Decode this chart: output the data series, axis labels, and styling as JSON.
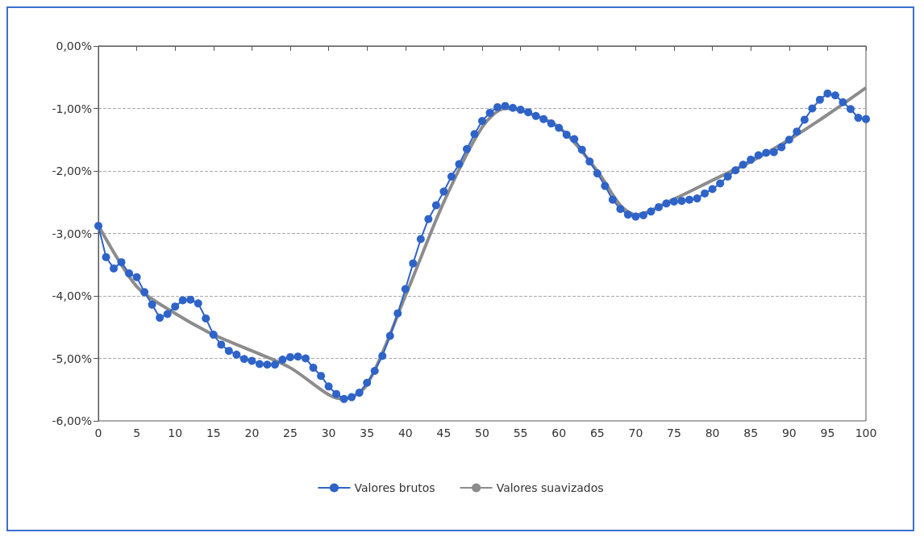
{
  "chart_data": {
    "type": "line",
    "xlim": [
      0,
      100
    ],
    "xticks": [
      0,
      5,
      10,
      15,
      20,
      25,
      30,
      35,
      40,
      45,
      50,
      55,
      60,
      65,
      70,
      75,
      80,
      85,
      90,
      95,
      100
    ],
    "ylim": [
      -6,
      0
    ],
    "yticks": [
      {
        "value": -6,
        "label": "-6,00%"
      },
      {
        "value": -5,
        "label": "-5,00%"
      },
      {
        "value": -4,
        "label": "-4,00%"
      },
      {
        "value": -3,
        "label": "-3,00%"
      },
      {
        "value": -2,
        "label": "-2,00%"
      },
      {
        "value": -1,
        "label": "-1,00%"
      },
      {
        "value": 0,
        "label": "0,00%"
      }
    ],
    "grid": "y",
    "legend": "bottom",
    "series": [
      {
        "name": "Valores suavizados",
        "color": "#8c8c8c",
        "marker": "none",
        "x": [
          0,
          5,
          10,
          15,
          20,
          25,
          30,
          32,
          35,
          40,
          45,
          50,
          53,
          55,
          60,
          65,
          68,
          70,
          75,
          80,
          85,
          90,
          95,
          100
        ],
        "values": [
          -2.87,
          -3.85,
          -4.28,
          -4.62,
          -4.88,
          -5.15,
          -5.58,
          -5.65,
          -5.42,
          -4.0,
          -2.5,
          -1.3,
          -1.0,
          -1.03,
          -1.3,
          -2.0,
          -2.55,
          -2.7,
          -2.45,
          -2.15,
          -1.85,
          -1.5,
          -1.1,
          -0.67
        ]
      },
      {
        "name": "Valores brutos",
        "color": "#2e63c8",
        "marker": "circle",
        "x": [
          0,
          1,
          2,
          3,
          4,
          5,
          6,
          7,
          8,
          9,
          10,
          11,
          12,
          13,
          14,
          15,
          16,
          17,
          18,
          19,
          20,
          21,
          22,
          23,
          24,
          25,
          26,
          27,
          28,
          29,
          30,
          31,
          32,
          33,
          34,
          35,
          36,
          37,
          38,
          39,
          40,
          41,
          42,
          43,
          44,
          45,
          46,
          47,
          48,
          49,
          50,
          51,
          52,
          53,
          54,
          55,
          56,
          57,
          58,
          59,
          60,
          61,
          62,
          63,
          64,
          65,
          66,
          67,
          68,
          69,
          70,
          71,
          72,
          73,
          74,
          75,
          76,
          77,
          78,
          79,
          80,
          81,
          82,
          83,
          84,
          85,
          86,
          87,
          88,
          89,
          90,
          91,
          92,
          93,
          94,
          95,
          96,
          97,
          98,
          99,
          100
        ],
        "values": [
          -2.88,
          -3.38,
          -3.56,
          -3.46,
          -3.64,
          -3.7,
          -3.94,
          -4.14,
          -4.35,
          -4.29,
          -4.17,
          -4.07,
          -4.06,
          -4.12,
          -4.36,
          -4.62,
          -4.78,
          -4.88,
          -4.94,
          -5.01,
          -5.04,
          -5.09,
          -5.1,
          -5.1,
          -5.02,
          -4.98,
          -4.97,
          -5.0,
          -5.15,
          -5.28,
          -5.45,
          -5.57,
          -5.65,
          -5.62,
          -5.55,
          -5.39,
          -5.2,
          -4.96,
          -4.64,
          -4.28,
          -3.89,
          -3.48,
          -3.09,
          -2.77,
          -2.55,
          -2.33,
          -2.09,
          -1.89,
          -1.65,
          -1.41,
          -1.2,
          -1.07,
          -0.98,
          -0.96,
          -0.99,
          -1.02,
          -1.06,
          -1.12,
          -1.17,
          -1.24,
          -1.31,
          -1.42,
          -1.49,
          -1.66,
          -1.85,
          -2.04,
          -2.24,
          -2.46,
          -2.61,
          -2.7,
          -2.73,
          -2.71,
          -2.65,
          -2.58,
          -2.52,
          -2.49,
          -2.48,
          -2.46,
          -2.44,
          -2.36,
          -2.29,
          -2.2,
          -2.09,
          -1.99,
          -1.9,
          -1.82,
          -1.75,
          -1.71,
          -1.7,
          -1.62,
          -1.5,
          -1.37,
          -1.18,
          -1.0,
          -0.86,
          -0.76,
          -0.79,
          -0.9,
          -1.01,
          -1.15,
          -1.17
        ]
      }
    ]
  }
}
